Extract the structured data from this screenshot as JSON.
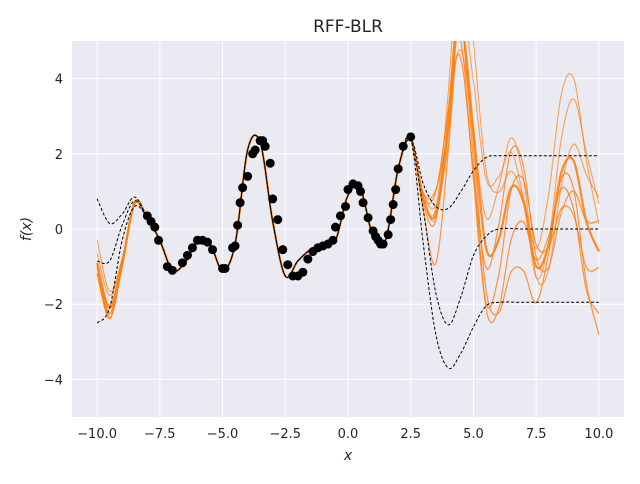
{
  "chart_data": {
    "type": "line",
    "title": "RFF-BLR",
    "xlabel": "x",
    "ylabel": "f(x)",
    "xlim": [
      -11.0,
      11.0
    ],
    "ylim": [
      -5.0,
      5.0
    ],
    "xticks": [
      -10.0,
      -7.5,
      -5.0,
      -2.5,
      0.0,
      2.5,
      5.0,
      7.5,
      10.0
    ],
    "xtick_labels": [
      "−10.0",
      "−7.5",
      "−5.0",
      "−2.5",
      "0.0",
      "2.5",
      "5.0",
      "7.5",
      "10.0"
    ],
    "yticks": [
      -4,
      -2,
      0,
      2,
      4
    ],
    "ytick_labels": [
      "−4",
      "−2",
      "0",
      "2",
      "4"
    ],
    "grid": true,
    "style": "seaborn-darkgrid",
    "colors": {
      "background": "#eaeaf2",
      "grid": "#ffffff",
      "samples": "#ff7f0e",
      "observations": "#000000",
      "gp_reference": "#000000"
    },
    "series": [
      {
        "kind": "reference-mean (dashed black)",
        "x": [
          -10,
          -9.5,
          -9,
          -8.5,
          -8,
          -7.5,
          -7,
          -6.5,
          -6,
          -5.5,
          -5,
          -4.5,
          -4,
          -3.5,
          -3,
          -2.5,
          -2,
          -1.5,
          -1,
          -0.5,
          0,
          0.5,
          1,
          1.5,
          2,
          2.5,
          3,
          3.5,
          4,
          4.5,
          5,
          5.5,
          6,
          7,
          8,
          9,
          10
        ],
        "y": [
          -0.85,
          -0.85,
          0.1,
          0.75,
          0.3,
          -0.3,
          -1.1,
          -0.9,
          -0.35,
          -0.4,
          -1.1,
          -0.4,
          2.1,
          2.3,
          0.2,
          -1.25,
          -0.85,
          -0.55,
          -0.4,
          -0.3,
          0.9,
          1.05,
          -0.2,
          -0.3,
          1.6,
          2.4,
          0.5,
          -1.7,
          -2.55,
          -1.8,
          -0.7,
          -0.2,
          0.0,
          0.0,
          0.0,
          0.0,
          0.0
        ]
      },
      {
        "kind": "reference-upper (dashed black)",
        "x": [
          -10,
          -9.5,
          -9,
          -8.5,
          -8,
          -7.5,
          -7,
          -6.5,
          -6,
          -5.5,
          -5,
          -4.5,
          -4,
          -3.5,
          -3,
          -2.5,
          -2,
          -1.5,
          -1,
          -0.5,
          0,
          0.5,
          1,
          1.5,
          2,
          2.5,
          3,
          3.5,
          4,
          4.5,
          5,
          5.5,
          6,
          7,
          8,
          9,
          10
        ],
        "y": [
          0.8,
          0.15,
          0.4,
          0.85,
          0.3,
          -0.3,
          -1.1,
          -0.9,
          -0.35,
          -0.4,
          -1.1,
          -0.4,
          2.1,
          2.3,
          0.2,
          -1.25,
          -0.85,
          -0.55,
          -0.4,
          -0.3,
          0.9,
          1.05,
          -0.2,
          -0.3,
          1.6,
          2.4,
          1.2,
          0.6,
          0.55,
          1.0,
          1.55,
          1.9,
          1.95,
          1.95,
          1.95,
          1.95,
          1.95
        ]
      },
      {
        "kind": "reference-lower (dashed black)",
        "x": [
          -10,
          -9.5,
          -9,
          -8.5,
          -8,
          -7.5,
          -7,
          -6.5,
          -6,
          -5.5,
          -5,
          -4.5,
          -4,
          -3.5,
          -3,
          -2.5,
          -2,
          -1.5,
          -1,
          -0.5,
          0,
          0.5,
          1,
          1.5,
          2,
          2.5,
          3,
          3.5,
          4,
          4.5,
          5,
          5.5,
          6,
          7,
          8,
          9,
          10
        ],
        "y": [
          -2.5,
          -2.1,
          -0.3,
          0.6,
          0.3,
          -0.3,
          -1.1,
          -0.9,
          -0.35,
          -0.4,
          -1.1,
          -0.4,
          2.1,
          2.3,
          0.2,
          -1.25,
          -0.85,
          -0.55,
          -0.4,
          -0.3,
          0.9,
          1.05,
          -0.2,
          -0.3,
          1.6,
          2.4,
          -0.4,
          -2.8,
          -3.7,
          -3.3,
          -2.6,
          -2.05,
          -1.95,
          -1.95,
          -1.95,
          -1.95,
          -1.95
        ]
      },
      {
        "kind": "posterior-sample-mean (orange)",
        "x": [
          -10,
          -9.5,
          -9,
          -8.5,
          -8,
          -7.5,
          -7,
          -6.5,
          -6,
          -5.5,
          -5,
          -4.5,
          -4,
          -3.5,
          -3,
          -2.5,
          -2,
          -1.5,
          -1,
          -0.5,
          0,
          0.5,
          1,
          1.5,
          2,
          2.5,
          3,
          3.5,
          4,
          4.3,
          4.6,
          5,
          5.5,
          6,
          6.5,
          7,
          7.5,
          8,
          8.5,
          9,
          9.5,
          10
        ],
        "y": [
          -0.9,
          -2.1,
          -0.9,
          0.7,
          0.3,
          -0.3,
          -1.1,
          -0.9,
          -0.35,
          -0.4,
          -1.1,
          -0.4,
          2.1,
          2.3,
          0.2,
          -1.25,
          -0.85,
          -0.55,
          -0.4,
          -0.3,
          0.9,
          1.05,
          -0.2,
          -0.3,
          1.6,
          2.4,
          0.8,
          0.4,
          2.8,
          5.2,
          5.2,
          2.6,
          -0.5,
          -0.3,
          1.1,
          0.7,
          -1.0,
          -0.4,
          1.5,
          1.8,
          0.2,
          -0.6
        ]
      }
    ],
    "observations": {
      "x": [
        -8.0,
        -7.85,
        -7.7,
        -7.55,
        -7.2,
        -7.0,
        -6.6,
        -6.4,
        -6.2,
        -6.0,
        -5.8,
        -5.6,
        -5.4,
        -5.0,
        -4.9,
        -4.6,
        -4.5,
        -4.4,
        -4.3,
        -4.2,
        -4.0,
        -3.8,
        -3.7,
        -3.5,
        -3.4,
        -3.3,
        -3.1,
        -3.0,
        -2.8,
        -2.6,
        -2.4,
        -2.2,
        -2.0,
        -1.8,
        -1.6,
        -1.4,
        -1.2,
        -1.0,
        -0.8,
        -0.6,
        -0.5,
        -0.3,
        -0.1,
        0.0,
        0.2,
        0.4,
        0.5,
        0.6,
        0.8,
        1.0,
        1.1,
        1.2,
        1.3,
        1.4,
        1.6,
        1.7,
        1.8,
        1.9,
        2.0,
        2.2,
        2.5
      ],
      "y": [
        0.35,
        0.2,
        0.05,
        -0.3,
        -1.0,
        -1.1,
        -0.9,
        -0.7,
        -0.5,
        -0.3,
        -0.3,
        -0.35,
        -0.55,
        -1.05,
        -1.05,
        -0.5,
        -0.45,
        0.1,
        0.7,
        1.1,
        1.4,
        2.0,
        2.1,
        2.35,
        2.35,
        2.2,
        1.75,
        0.8,
        0.25,
        -0.55,
        -0.95,
        -1.25,
        -1.25,
        -1.15,
        -0.8,
        -0.6,
        -0.5,
        -0.45,
        -0.4,
        -0.3,
        0.05,
        0.35,
        0.6,
        1.05,
        1.2,
        1.15,
        1.0,
        0.7,
        0.3,
        -0.05,
        -0.2,
        -0.3,
        -0.4,
        -0.4,
        -0.15,
        0.25,
        0.65,
        1.05,
        1.6,
        2.2,
        2.45
      ]
    }
  }
}
